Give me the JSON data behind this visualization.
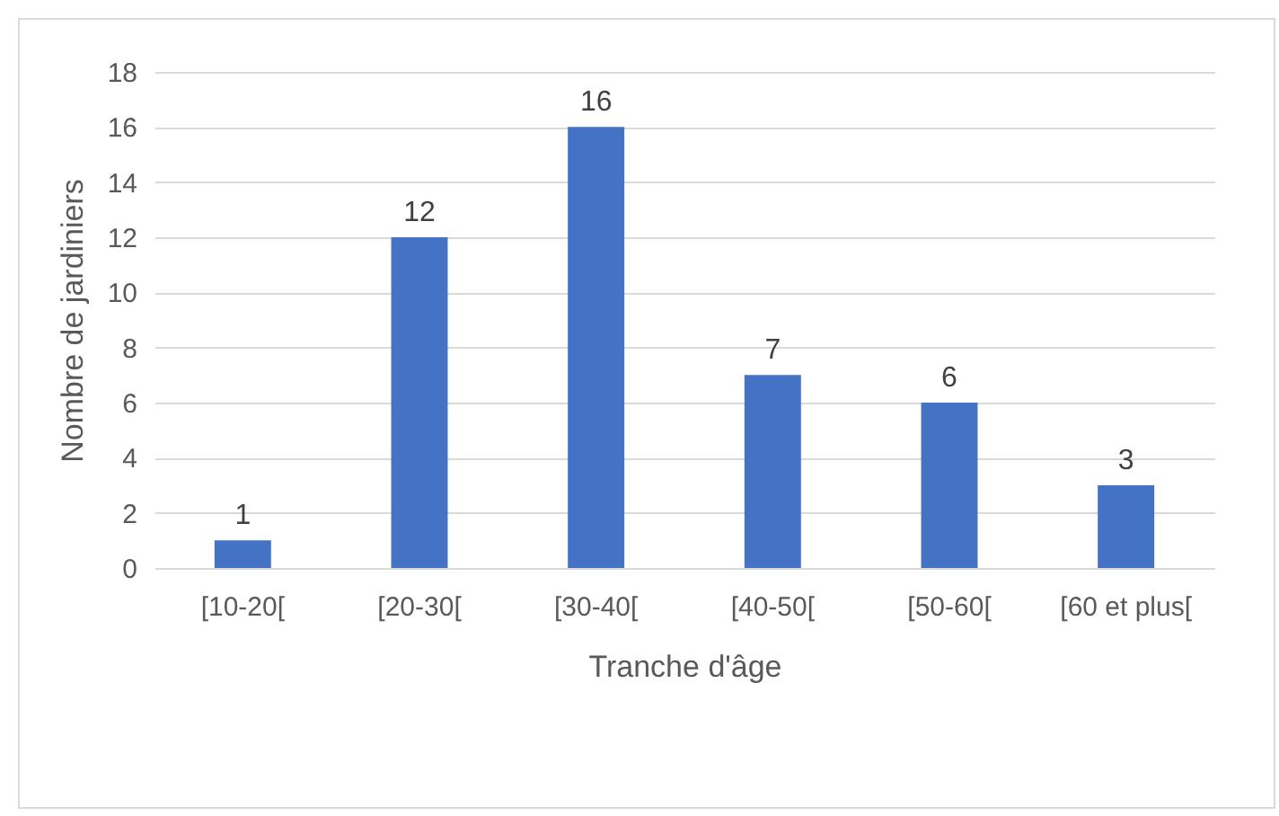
{
  "chart_data": {
    "type": "bar",
    "xlabel": "Tranche d'âge",
    "ylabel": "Nombre de jardiniers",
    "categories": [
      "[10-20[",
      "[20-30[",
      "[30-40[",
      "[40-50[",
      "[50-60[",
      "[60 et plus["
    ],
    "values": [
      1,
      12,
      16,
      7,
      6,
      3
    ],
    "color": "#4472c4",
    "ylim": [
      0,
      18
    ],
    "yticks": [
      0,
      2,
      4,
      6,
      8,
      10,
      12,
      14,
      16,
      18
    ],
    "grid": "y",
    "data_labels": true
  }
}
